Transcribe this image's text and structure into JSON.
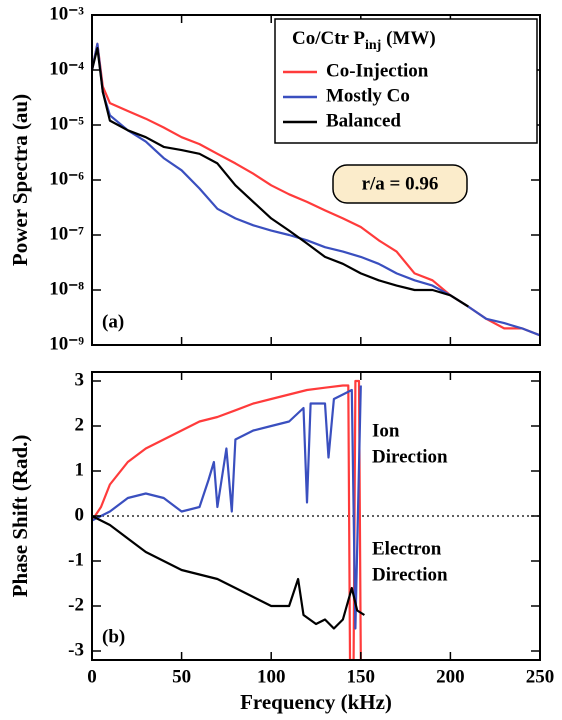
{
  "chart_data": [
    {
      "type": "line",
      "log_y": true,
      "ylabel": "Power Spectra (au)",
      "panel_label": "(a)",
      "annotation": "r/a = 0.96",
      "legend_title": [
        "Co/Ctr P",
        "inj",
        " (MW)"
      ],
      "legend": "upper right",
      "x": [
        0,
        3,
        6,
        10,
        20,
        30,
        40,
        50,
        60,
        70,
        80,
        90,
        100,
        110,
        120,
        130,
        140,
        150,
        160,
        170,
        180,
        190,
        200,
        210,
        220,
        230,
        240,
        250
      ],
      "series": [
        {
          "name": "Co-Injection",
          "color": "#ff3b3b",
          "values": [
            0.0001,
            0.0003,
            5e-05,
            2.5e-05,
            1.8e-05,
            1.3e-05,
            9e-06,
            6e-06,
            4.5e-06,
            3e-06,
            2e-06,
            1.3e-06,
            8e-07,
            5.5e-07,
            4e-07,
            2.8e-07,
            2e-07,
            1.4e-07,
            8e-08,
            5e-08,
            2e-08,
            1.5e-08,
            8e-09,
            5e-09,
            3e-09,
            2e-09,
            2e-09,
            1.5e-09
          ]
        },
        {
          "name": "Mostly Co",
          "color": "#3a4fbf",
          "values": [
            0.0001,
            0.0003,
            4e-05,
            1.5e-05,
            8e-06,
            5e-06,
            2.5e-06,
            1.5e-06,
            7e-07,
            3e-07,
            2e-07,
            1.5e-07,
            1.2e-07,
            1e-07,
            8e-08,
            6e-08,
            5e-08,
            4e-08,
            3e-08,
            2e-08,
            1.5e-08,
            1.2e-08,
            8e-09,
            5e-09,
            3e-09,
            2.5e-09,
            2e-09,
            1.5e-09
          ]
        },
        {
          "name": "Balanced",
          "color": "#000000",
          "values": [
            0.0001,
            0.00025,
            4e-05,
            1.2e-05,
            8e-06,
            6e-06,
            4e-06,
            3.5e-06,
            3e-06,
            2e-06,
            8e-07,
            4e-07,
            2e-07,
            1.2e-07,
            7e-08,
            4e-08,
            3e-08,
            2e-08,
            1.5e-08,
            1.2e-08,
            1e-08,
            1e-08,
            8e-09,
            5e-09,
            null,
            null,
            null,
            null
          ]
        }
      ],
      "xlim": [
        0,
        250
      ],
      "xticks": [
        0,
        50,
        100,
        150,
        200,
        250
      ],
      "ylim": [
        1e-09,
        0.001
      ],
      "yticks": [
        {
          "value": 0.001,
          "label": "10⁻³"
        },
        {
          "value": 0.0001,
          "label": "10⁻⁴"
        },
        {
          "value": 1e-05,
          "label": "10⁻⁵"
        },
        {
          "value": 1e-06,
          "label": "10⁻⁶"
        },
        {
          "value": 1e-07,
          "label": "10⁻⁷"
        },
        {
          "value": 1e-08,
          "label": "10⁻⁸"
        },
        {
          "value": 1e-09,
          "label": "10⁻⁹"
        }
      ]
    },
    {
      "type": "line",
      "ylabel": "Phase Shift (Rad.)",
      "xlabel": "Frequency (kHz)",
      "panel_label": "(b)",
      "zero_line": true,
      "annotations": [
        [
          "Ion",
          "Direction"
        ],
        [
          "Electron",
          "Direction"
        ]
      ],
      "series": [
        {
          "name": "Co-Injection",
          "color": "#ff3b3b",
          "x": [
            0,
            5,
            10,
            20,
            30,
            40,
            50,
            60,
            70,
            80,
            90,
            100,
            110,
            120,
            130,
            140,
            143,
            144,
            146,
            147,
            149,
            150
          ],
          "values": [
            -0.1,
            0.2,
            0.7,
            1.2,
            1.5,
            1.7,
            1.9,
            2.1,
            2.2,
            2.35,
            2.5,
            2.6,
            2.7,
            2.8,
            2.85,
            2.9,
            2.9,
            -3.2,
            -3.2,
            3.0,
            3.0,
            -3.2
          ]
        },
        {
          "name": "Mostly Co",
          "color": "#3a4fbf",
          "x": [
            0,
            10,
            20,
            30,
            40,
            50,
            60,
            65,
            68,
            70,
            75,
            78,
            80,
            90,
            100,
            110,
            118,
            120,
            122,
            130,
            132,
            135,
            140,
            145,
            147,
            150
          ],
          "values": [
            -0.1,
            0.1,
            0.4,
            0.5,
            0.4,
            0.1,
            0.2,
            0.8,
            1.2,
            0.2,
            1.5,
            0.1,
            1.7,
            1.9,
            2.0,
            2.1,
            2.4,
            0.3,
            2.5,
            2.5,
            1.3,
            2.6,
            2.7,
            2.8,
            -2.5,
            2.9
          ]
        },
        {
          "name": "Balanced",
          "color": "#000000",
          "x": [
            0,
            10,
            20,
            30,
            40,
            50,
            60,
            70,
            80,
            90,
            100,
            110,
            115,
            118,
            125,
            130,
            135,
            140,
            145,
            148,
            152
          ],
          "values": [
            0,
            -0.2,
            -0.5,
            -0.8,
            -1.0,
            -1.2,
            -1.3,
            -1.4,
            -1.6,
            -1.8,
            -2.0,
            -2.0,
            -1.4,
            -2.2,
            -2.4,
            -2.3,
            -2.5,
            -2.3,
            -1.6,
            -2.1,
            -2.2
          ]
        }
      ],
      "xlim": [
        0,
        250
      ],
      "xticks": [
        0,
        50,
        100,
        150,
        200,
        250
      ],
      "ylim": [
        -3.2,
        3.2
      ],
      "yticks": [
        -3,
        -2,
        -1,
        0,
        1,
        2,
        3
      ]
    }
  ]
}
